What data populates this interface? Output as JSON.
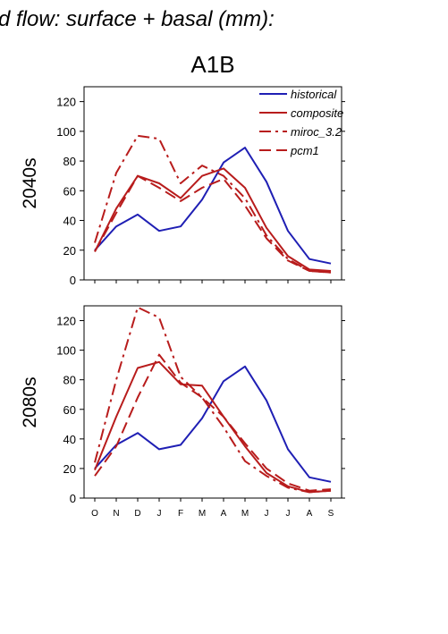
{
  "figure": {
    "suptitle": "d flow: surface + basal (mm):",
    "panel_title": "A1B"
  },
  "colors": {
    "historical": "#1f1fb4",
    "projection": "#b81c1c"
  },
  "chart_data": [
    {
      "type": "line",
      "title": "A1B",
      "ylabel": "2040s",
      "xlabel": "",
      "categories": [
        "O",
        "N",
        "D",
        "J",
        "F",
        "M",
        "A",
        "M",
        "J",
        "J",
        "A",
        "S"
      ],
      "ylim": [
        0,
        130
      ],
      "yticks": [
        0,
        20,
        40,
        60,
        80,
        100,
        120
      ],
      "grid": false,
      "legend": "top-right",
      "series": [
        {
          "name": "historical",
          "style": "solid",
          "color": "#1f1fb4",
          "values": [
            20,
            36,
            44,
            33,
            36,
            54,
            79,
            89,
            66,
            33,
            14,
            11
          ]
        },
        {
          "name": "composite",
          "style": "solid",
          "color": "#b81c1c",
          "values": [
            19,
            48,
            70,
            65,
            55,
            70,
            75,
            62,
            35,
            16,
            7,
            6
          ]
        },
        {
          "name": "miroc_3.2",
          "style": "dashdot",
          "color": "#b81c1c",
          "values": [
            25,
            72,
            97,
            95,
            65,
            77,
            70,
            55,
            30,
            14,
            6,
            5
          ]
        },
        {
          "name": "pcm1",
          "style": "dashed",
          "color": "#b81c1c",
          "values": [
            19,
            45,
            70,
            62,
            53,
            62,
            68,
            50,
            28,
            13,
            6,
            5
          ]
        }
      ]
    },
    {
      "type": "line",
      "title": "",
      "ylabel": "2080s",
      "xlabel": "",
      "categories": [
        "O",
        "N",
        "D",
        "J",
        "F",
        "M",
        "A",
        "M",
        "J",
        "J",
        "A",
        "S"
      ],
      "ylim": [
        0,
        130
      ],
      "yticks": [
        0,
        20,
        40,
        60,
        80,
        100,
        120
      ],
      "grid": false,
      "series": [
        {
          "name": "historical",
          "style": "solid",
          "color": "#1f1fb4",
          "values": [
            20,
            36,
            44,
            33,
            36,
            54,
            79,
            89,
            66,
            33,
            14,
            11
          ]
        },
        {
          "name": "composite",
          "style": "solid",
          "color": "#b81c1c",
          "values": [
            19,
            55,
            88,
            92,
            77,
            76,
            55,
            35,
            17,
            8,
            4,
            5
          ]
        },
        {
          "name": "miroc_3.2",
          "style": "dashdot",
          "color": "#b81c1c",
          "values": [
            24,
            80,
            129,
            122,
            82,
            68,
            48,
            25,
            15,
            7,
            4,
            5
          ]
        },
        {
          "name": "pcm1",
          "style": "dashed",
          "color": "#b81c1c",
          "values": [
            15,
            35,
            68,
            97,
            78,
            68,
            55,
            37,
            20,
            10,
            5,
            6
          ]
        }
      ]
    }
  ]
}
